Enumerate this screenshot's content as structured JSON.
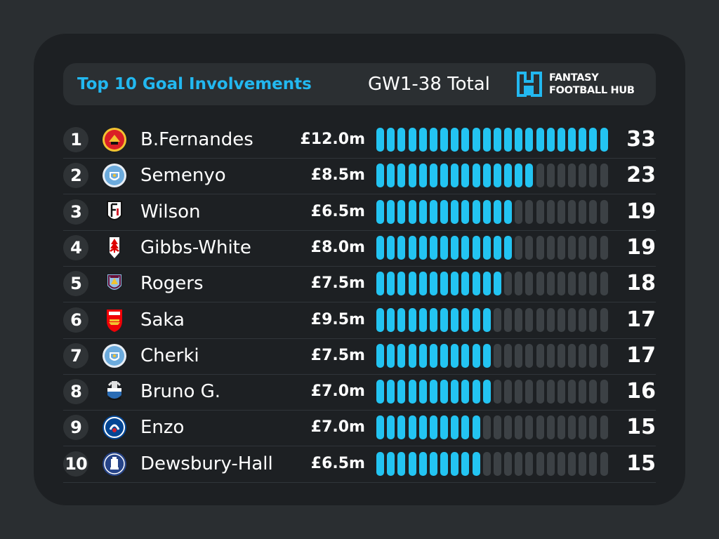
{
  "header": {
    "title": "Top 10 Goal Involvements",
    "subtitle": "GW1-38 Total",
    "logo_line1": "FANTASY",
    "logo_line2": "FOOTBALL HUB"
  },
  "colors": {
    "accent": "#22b8f0",
    "bar_filled": "#23c4f2",
    "bar_empty": "#3c4145",
    "card": "#1d2023",
    "background": "#2a2e31"
  },
  "bar_scale": {
    "max": 33,
    "segments": 22
  },
  "rows": [
    {
      "rank": "1",
      "crest": "man-utd-crest",
      "name": "B.Fernandes",
      "price": "£12.0m",
      "value": "33"
    },
    {
      "rank": "2",
      "crest": "man-city-crest",
      "name": "Semenyo",
      "price": "£8.5m",
      "value": "23"
    },
    {
      "rank": "3",
      "crest": "fulham-crest",
      "name": "Wilson",
      "price": "£6.5m",
      "value": "19"
    },
    {
      "rank": "4",
      "crest": "nottm-forest-crest",
      "name": "Gibbs-White",
      "price": "£8.0m",
      "value": "19"
    },
    {
      "rank": "5",
      "crest": "aston-villa-crest",
      "name": "Rogers",
      "price": "£7.5m",
      "value": "18"
    },
    {
      "rank": "6",
      "crest": "arsenal-crest",
      "name": "Saka",
      "price": "£9.5m",
      "value": "17"
    },
    {
      "rank": "7",
      "crest": "man-city-crest",
      "name": "Cherki",
      "price": "£7.5m",
      "value": "17"
    },
    {
      "rank": "8",
      "crest": "newcastle-crest",
      "name": "Bruno G.",
      "price": "£7.0m",
      "value": "16"
    },
    {
      "rank": "9",
      "crest": "chelsea-crest",
      "name": "Enzo",
      "price": "£7.0m",
      "value": "15"
    },
    {
      "rank": "10",
      "crest": "everton-crest",
      "name": "Dewsbury-Hall",
      "price": "£6.5m",
      "value": "15"
    }
  ],
  "chart_data": {
    "type": "bar",
    "title": "Top 10 Goal Involvements",
    "subtitle": "GW1-38 Total",
    "categories": [
      "B.Fernandes",
      "Semenyo",
      "Wilson",
      "Gibbs-White",
      "Rogers",
      "Saka",
      "Cherki",
      "Bruno G.",
      "Enzo",
      "Dewsbury-Hall"
    ],
    "values": [
      33,
      23,
      19,
      19,
      18,
      17,
      17,
      16,
      15,
      15
    ],
    "prices": [
      "£12.0m",
      "£8.5m",
      "£6.5m",
      "£8.0m",
      "£7.5m",
      "£9.5m",
      "£7.5m",
      "£7.0m",
      "£7.0m",
      "£6.5m"
    ],
    "orientation": "horizontal",
    "xlim": [
      0,
      33
    ],
    "grid": false,
    "legend": "none"
  }
}
